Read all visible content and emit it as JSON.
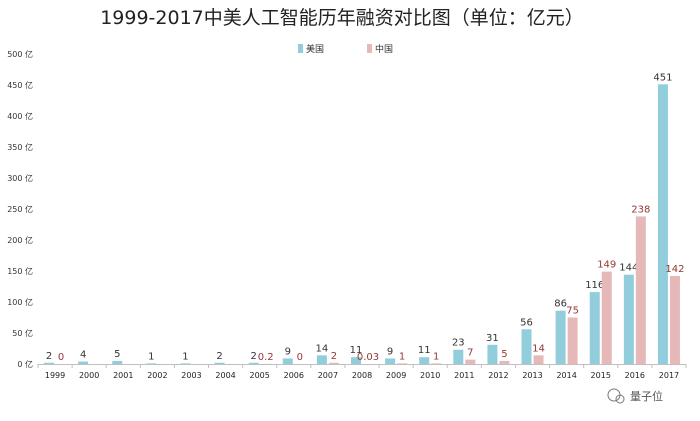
{
  "watermark": "量子位",
  "chart_data": {
    "type": "bar",
    "title": "1999-2017中美人工智能历年融资对比图（单位：亿元）",
    "xlabel": "",
    "ylabel": "",
    "ylim": [
      0,
      500
    ],
    "ytick_values": [
      0,
      50,
      100,
      150,
      200,
      250,
      300,
      350,
      400,
      450,
      500
    ],
    "ytick_labels": [
      "0 亿",
      "50 亿",
      "100 亿",
      "150 亿",
      "200 亿",
      "250 亿",
      "300 亿",
      "350 亿",
      "400 亿",
      "450 亿",
      "500 亿"
    ],
    "grid": false,
    "legend_position": "top-center",
    "categories": [
      "1999",
      "2000",
      "2001",
      "2002",
      "2003",
      "2004",
      "2005",
      "2006",
      "2007",
      "2008",
      "2009",
      "2010",
      "2011",
      "2012",
      "2013",
      "2014",
      "2015",
      "2016",
      "2017"
    ],
    "series": [
      {
        "name": "美国",
        "color": "#92cddc",
        "label_color": "#333333",
        "values": [
          2,
          4,
          5,
          1,
          1,
          2,
          2,
          9,
          14,
          11,
          9,
          11,
          23,
          31,
          56,
          86,
          116,
          144,
          451
        ],
        "labels": [
          "2",
          "4",
          "5",
          "1",
          "1",
          "2",
          "2",
          "9",
          "14",
          "11",
          "9",
          "11",
          "23",
          "31",
          "56",
          "86",
          "116",
          "144",
          "451"
        ]
      },
      {
        "name": "中国",
        "color": "#e6b9b8",
        "label_color": "#953735",
        "values": [
          0,
          null,
          null,
          null,
          null,
          null,
          0.2,
          0,
          2,
          0.03,
          1,
          1,
          7,
          5,
          14,
          75,
          149,
          238,
          142
        ],
        "labels": [
          "0",
          "",
          "",
          "",
          "",
          "",
          "0.2",
          "0",
          "2",
          "0.03",
          "1",
          "1",
          "7",
          "5",
          "14",
          "75",
          "149",
          "238",
          "142"
        ]
      }
    ]
  }
}
